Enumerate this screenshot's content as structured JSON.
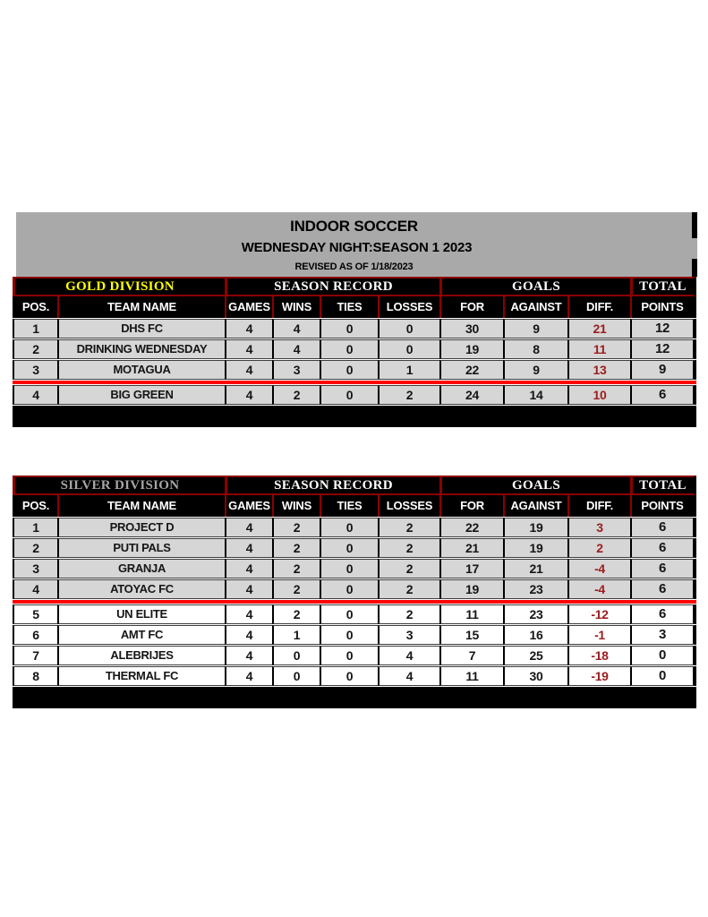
{
  "document": {
    "title": "INDOOR SOCCER",
    "subtitle": "WEDNESDAY NIGHT:SEASON 1 2023",
    "revised": "REVISED AS OF 1/18/2023"
  },
  "columns": [
    "POS.",
    "TEAM NAME",
    "GAMES",
    "WINS",
    "TIES",
    "LOSSES",
    "FOR",
    "AGAINST",
    "DIFF.",
    "POINTS"
  ],
  "group_labels": [
    "SEASON RECORD",
    "GOALS",
    "TOTAL"
  ],
  "colors": {
    "gold_division_text": "#ffff00",
    "silver_division_text": "#a6a6a6",
    "header_background": "#000000",
    "dark_red_border": "#8b0000",
    "promotion_line_red": "#fe0000",
    "diff_text_red": "#9b1c1e",
    "shaded_row_gray": "#d6d6d6",
    "title_block_gray": "#a9a9a9"
  },
  "tables": [
    {
      "division": "GOLD DIVISION",
      "promotion_line_after_row": 3,
      "rows": [
        {
          "pos": "1",
          "team": "DHS FC",
          "games": "4",
          "wins": "4",
          "ties": "0",
          "losses": "0",
          "goals_for": "30",
          "against": "9",
          "diff": "21",
          "points": "12",
          "shaded": true
        },
        {
          "pos": "2",
          "team": "DRINKING WEDNESDAY",
          "games": "4",
          "wins": "4",
          "ties": "0",
          "losses": "0",
          "goals_for": "19",
          "against": "8",
          "diff": "11",
          "points": "12",
          "shaded": true
        },
        {
          "pos": "3",
          "team": "MOTAGUA",
          "games": "4",
          "wins": "3",
          "ties": "0",
          "losses": "1",
          "goals_for": "22",
          "against": "9",
          "diff": "13",
          "points": "9",
          "shaded": true
        },
        {
          "pos": "4",
          "team": "BIG GREEN",
          "games": "4",
          "wins": "2",
          "ties": "0",
          "losses": "2",
          "goals_for": "24",
          "against": "14",
          "diff": "10",
          "points": "6",
          "shaded": true
        }
      ]
    },
    {
      "division": "SILVER DIVISION",
      "promotion_line_after_row": 4,
      "rows": [
        {
          "pos": "1",
          "team": "PROJECT D",
          "games": "4",
          "wins": "2",
          "ties": "0",
          "losses": "2",
          "goals_for": "22",
          "against": "19",
          "diff": "3",
          "points": "6",
          "shaded": true
        },
        {
          "pos": "2",
          "team": "PUTI PALS",
          "games": "4",
          "wins": "2",
          "ties": "0",
          "losses": "2",
          "goals_for": "21",
          "against": "19",
          "diff": "2",
          "points": "6",
          "shaded": true
        },
        {
          "pos": "3",
          "team": "GRANJA",
          "games": "4",
          "wins": "2",
          "ties": "0",
          "losses": "2",
          "goals_for": "17",
          "against": "21",
          "diff": "-4",
          "points": "6",
          "shaded": true
        },
        {
          "pos": "4",
          "team": "ATOYAC FC",
          "games": "4",
          "wins": "2",
          "ties": "0",
          "losses": "2",
          "goals_for": "19",
          "against": "23",
          "diff": "-4",
          "points": "6",
          "shaded": true
        },
        {
          "pos": "5",
          "team": "UN ELITE",
          "games": "4",
          "wins": "2",
          "ties": "0",
          "losses": "2",
          "goals_for": "11",
          "against": "23",
          "diff": "-12",
          "points": "6",
          "shaded": false
        },
        {
          "pos": "6",
          "team": "AMT FC",
          "games": "4",
          "wins": "1",
          "ties": "0",
          "losses": "3",
          "goals_for": "15",
          "against": "16",
          "diff": "-1",
          "points": "3",
          "shaded": false
        },
        {
          "pos": "7",
          "team": "ALEBRIJES",
          "games": "4",
          "wins": "0",
          "ties": "0",
          "losses": "4",
          "goals_for": "7",
          "against": "25",
          "diff": "-18",
          "points": "0",
          "shaded": false
        },
        {
          "pos": "8",
          "team": "THERMAL FC",
          "games": "4",
          "wins": "0",
          "ties": "0",
          "losses": "4",
          "goals_for": "11",
          "against": "30",
          "diff": "-19",
          "points": "0",
          "shaded": false
        }
      ]
    }
  ]
}
